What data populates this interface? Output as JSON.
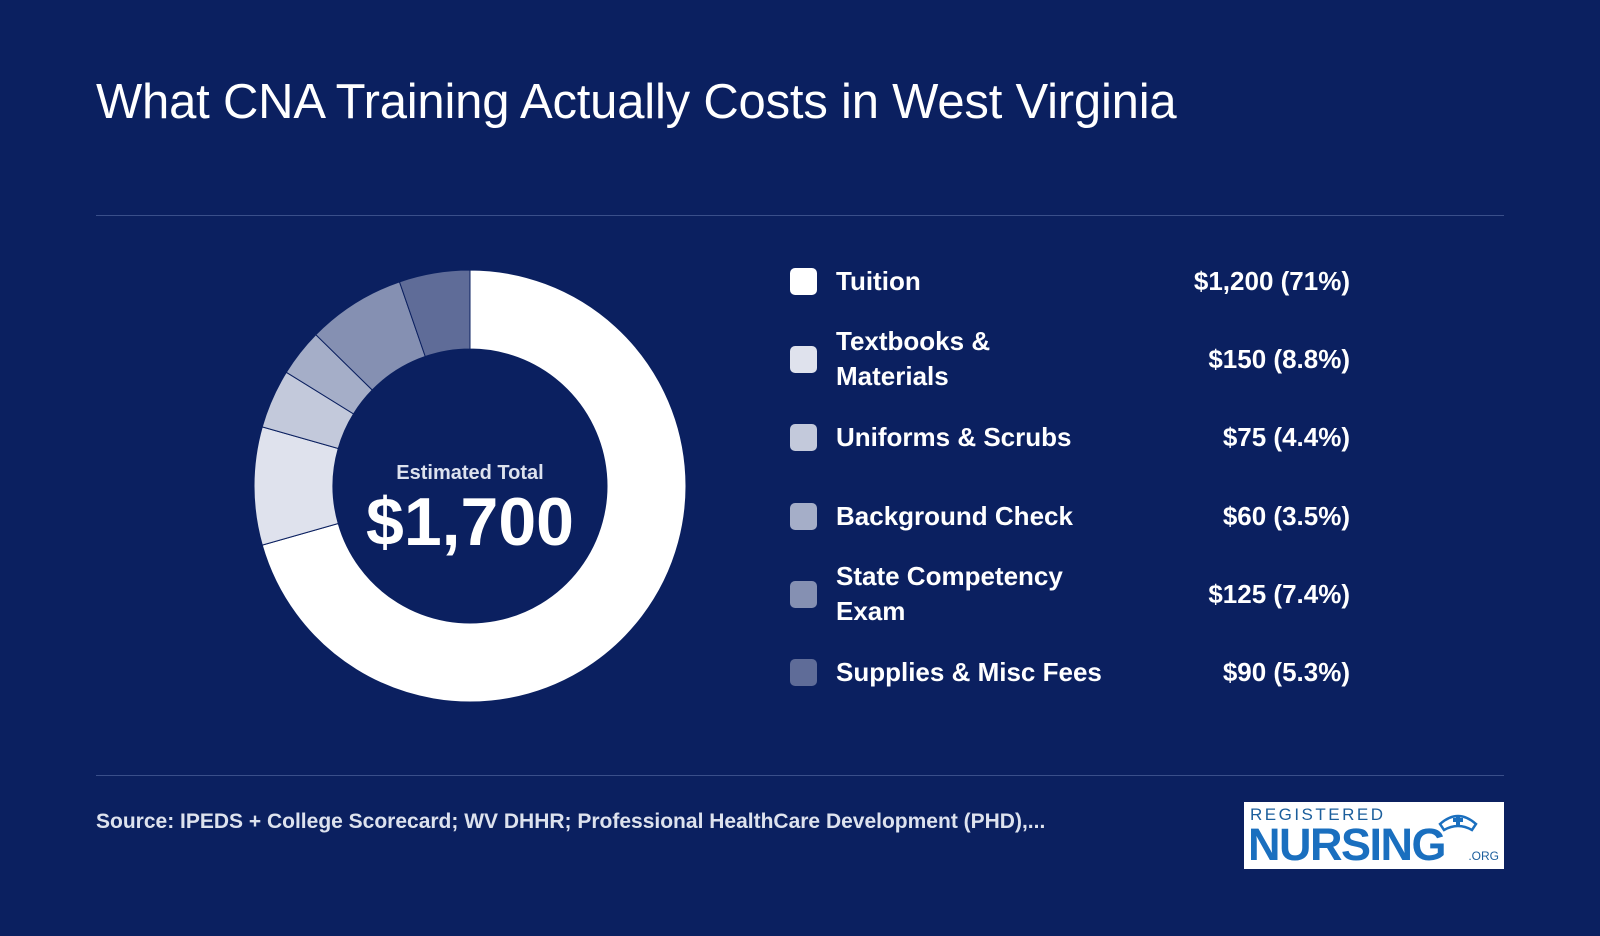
{
  "title": "What CNA Training Actually Costs in West Virginia",
  "center": {
    "label": "Estimated Total",
    "value": "$1,700"
  },
  "chart_data": {
    "type": "pie",
    "title": "What CNA Training Actually Costs in West Virginia",
    "unit": "USD",
    "total": 1700,
    "slices": [
      {
        "label": "Tuition",
        "value": 1200,
        "percent": 71,
        "display": "$1,200 (71%)",
        "color": "#ffffff"
      },
      {
        "label": "Textbooks & Materials",
        "value": 150,
        "percent": 8.8,
        "display": "$150 (8.8%)",
        "color": "#dfe2ed"
      },
      {
        "label": "Uniforms & Scrubs",
        "value": 75,
        "percent": 4.4,
        "display": "$75 (4.4%)",
        "color": "#c3c9db"
      },
      {
        "label": "Background Check",
        "value": 60,
        "percent": 3.5,
        "display": "$60 (3.5%)",
        "color": "#a5aec8"
      },
      {
        "label": "State Competency Exam",
        "value": 125,
        "percent": 7.4,
        "display": "$125 (7.4%)",
        "color": "#8590b2"
      },
      {
        "label": "Supplies & Misc Fees",
        "value": 90,
        "percent": 5.3,
        "display": "$90 (5.3%)",
        "color": "#5f6c98"
      }
    ],
    "legend_position": "right"
  },
  "source": "Source: IPEDS + College Scorecard; WV DHHR; Professional HealthCare Development (PHD),...",
  "logo": {
    "top": "REGISTERED",
    "main": "NURSING",
    "suffix": ".ORG"
  }
}
